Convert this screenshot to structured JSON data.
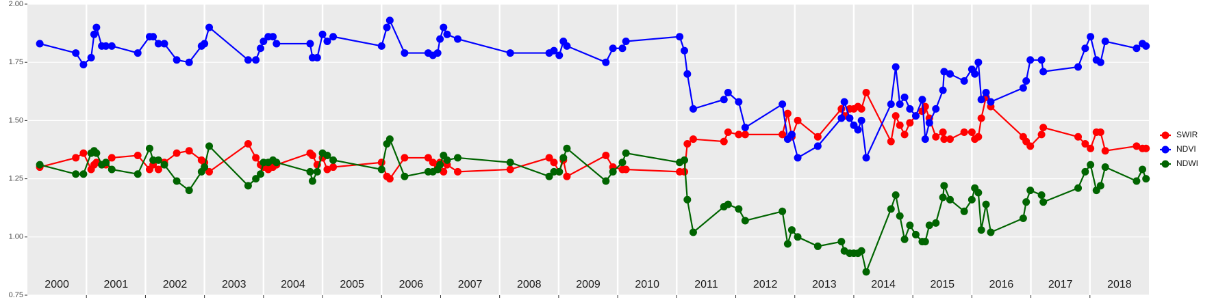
{
  "chart_data": {
    "type": "line",
    "x": [
      2000.21,
      2000.82,
      2000.95,
      2001.08,
      2001.13,
      2001.17,
      2001.26,
      2001.33,
      2001.43,
      2001.87,
      2002.07,
      2002.13,
      2002.22,
      2002.32,
      2002.53,
      2002.74,
      2002.95,
      2003.0,
      2003.08,
      2003.74,
      2003.87,
      2003.95,
      2004.0,
      2004.08,
      2004.16,
      2004.22,
      2004.79,
      2004.83,
      2004.91,
      2005.0,
      2005.08,
      2005.18,
      2006.0,
      2006.09,
      2006.14,
      2006.39,
      2006.79,
      2006.87,
      2006.95,
      2006.99,
      2007.05,
      2007.11,
      2007.29,
      2008.18,
      2008.84,
      2008.92,
      2009.01,
      2009.08,
      2009.14,
      2009.8,
      2009.92,
      2010.08,
      2010.14,
      2011.05,
      2011.13,
      2011.18,
      2011.28,
      2011.8,
      2011.87,
      2012.05,
      2012.16,
      2012.79,
      2012.88,
      2012.95,
      2013.05,
      2013.39,
      2013.79,
      2013.84,
      2013.93,
      2014.0,
      2014.07,
      2014.13,
      2014.21,
      2014.63,
      2014.71,
      2014.78,
      2014.86,
      2014.95,
      2015.05,
      2015.16,
      2015.21,
      2015.28,
      2015.39,
      2015.51,
      2015.53,
      2015.63,
      2015.87,
      2016.0,
      2016.05,
      2016.11,
      2016.16,
      2016.24,
      2016.32,
      2016.87,
      2016.92,
      2016.99,
      2017.18,
      2017.21,
      2017.8,
      2017.92,
      2018.01,
      2018.11,
      2018.18,
      2018.26,
      2018.79,
      2018.89,
      2018.95
    ],
    "series": [
      {
        "name": "SWIR",
        "color": "#ff0000",
        "values": [
          1.3,
          1.34,
          1.36,
          1.29,
          1.31,
          1.32,
          1.31,
          1.31,
          1.34,
          1.35,
          1.29,
          1.31,
          1.29,
          1.32,
          1.36,
          1.37,
          1.33,
          1.32,
          1.28,
          1.4,
          1.34,
          1.31,
          1.3,
          1.29,
          1.3,
          1.31,
          1.36,
          1.35,
          1.31,
          1.34,
          1.29,
          1.3,
          1.32,
          1.26,
          1.25,
          1.34,
          1.34,
          1.32,
          1.3,
          1.32,
          1.28,
          1.31,
          1.28,
          1.29,
          1.34,
          1.32,
          1.28,
          1.33,
          1.26,
          1.35,
          1.3,
          1.29,
          1.29,
          1.28,
          1.28,
          1.4,
          1.42,
          1.41,
          1.45,
          1.44,
          1.44,
          1.44,
          1.53,
          1.43,
          1.5,
          1.43,
          1.55,
          1.52,
          1.55,
          1.55,
          1.56,
          1.55,
          1.62,
          1.41,
          1.52,
          1.48,
          1.44,
          1.49,
          1.52,
          1.54,
          1.56,
          1.51,
          1.43,
          1.45,
          1.42,
          1.42,
          1.45,
          1.45,
          1.42,
          1.43,
          1.51,
          1.6,
          1.56,
          1.43,
          1.41,
          1.39,
          1.44,
          1.47,
          1.43,
          1.4,
          1.38,
          1.45,
          1.45,
          1.37,
          1.39,
          1.38,
          1.38
        ]
      },
      {
        "name": "NDVI",
        "color": "#0000ff",
        "values": [
          1.83,
          1.79,
          1.74,
          1.77,
          1.87,
          1.9,
          1.82,
          1.82,
          1.82,
          1.79,
          1.86,
          1.86,
          1.83,
          1.83,
          1.76,
          1.75,
          1.82,
          1.83,
          1.9,
          1.76,
          1.76,
          1.81,
          1.84,
          1.86,
          1.86,
          1.83,
          1.83,
          1.77,
          1.77,
          1.87,
          1.84,
          1.86,
          1.82,
          1.9,
          1.93,
          1.79,
          1.79,
          1.78,
          1.79,
          1.85,
          1.9,
          1.87,
          1.85,
          1.79,
          1.79,
          1.8,
          1.78,
          1.84,
          1.82,
          1.75,
          1.81,
          1.81,
          1.84,
          1.86,
          1.8,
          1.7,
          1.55,
          1.59,
          1.62,
          1.58,
          1.47,
          1.57,
          1.42,
          1.44,
          1.34,
          1.39,
          1.51,
          1.58,
          1.51,
          1.48,
          1.46,
          1.5,
          1.34,
          1.57,
          1.73,
          1.57,
          1.6,
          1.55,
          1.52,
          1.59,
          1.42,
          1.49,
          1.55,
          1.63,
          1.71,
          1.7,
          1.67,
          1.72,
          1.7,
          1.75,
          1.59,
          1.62,
          1.58,
          1.64,
          1.67,
          1.76,
          1.76,
          1.71,
          1.73,
          1.81,
          1.86,
          1.76,
          1.75,
          1.84,
          1.81,
          1.83,
          1.82
        ]
      },
      {
        "name": "NDWI",
        "color": "#006400",
        "values": [
          1.31,
          1.27,
          1.27,
          1.36,
          1.37,
          1.36,
          1.31,
          1.32,
          1.29,
          1.27,
          1.38,
          1.33,
          1.33,
          1.31,
          1.24,
          1.2,
          1.28,
          1.3,
          1.39,
          1.22,
          1.25,
          1.27,
          1.32,
          1.32,
          1.33,
          1.32,
          1.28,
          1.24,
          1.28,
          1.36,
          1.35,
          1.33,
          1.29,
          1.4,
          1.42,
          1.26,
          1.28,
          1.28,
          1.29,
          1.31,
          1.35,
          1.33,
          1.34,
          1.32,
          1.26,
          1.28,
          1.28,
          1.34,
          1.38,
          1.24,
          1.28,
          1.32,
          1.36,
          1.32,
          1.33,
          1.16,
          1.02,
          1.13,
          1.14,
          1.12,
          1.07,
          1.11,
          0.97,
          1.03,
          1.0,
          0.96,
          0.98,
          0.94,
          0.93,
          0.93,
          0.93,
          0.94,
          0.85,
          1.12,
          1.18,
          1.09,
          0.99,
          1.05,
          1.01,
          0.98,
          0.98,
          1.05,
          1.06,
          1.17,
          1.22,
          1.16,
          1.11,
          1.16,
          1.21,
          1.19,
          1.03,
          1.14,
          1.02,
          1.08,
          1.15,
          1.2,
          1.18,
          1.15,
          1.21,
          1.28,
          1.31,
          1.2,
          1.22,
          1.3,
          1.24,
          1.29,
          1.25
        ]
      }
    ],
    "xlim": [
      2000,
      2019
    ],
    "xticks": [
      2001,
      2002,
      2003,
      2004,
      2005,
      2006,
      2007,
      2008,
      2009,
      2010,
      2011,
      2012,
      2013,
      2014,
      2015,
      2016,
      2017,
      2018
    ],
    "year_labels": [
      {
        "x": 2000.5,
        "label": "2000"
      },
      {
        "x": 2001.5,
        "label": "2001"
      },
      {
        "x": 2002.5,
        "label": "2002"
      },
      {
        "x": 2003.5,
        "label": "2003"
      },
      {
        "x": 2004.5,
        "label": "2004"
      },
      {
        "x": 2005.5,
        "label": "2005"
      },
      {
        "x": 2006.5,
        "label": "2006"
      },
      {
        "x": 2007.5,
        "label": "2007"
      },
      {
        "x": 2008.5,
        "label": "2008"
      },
      {
        "x": 2009.5,
        "label": "2009"
      },
      {
        "x": 2010.5,
        "label": "2010"
      },
      {
        "x": 2011.5,
        "label": "2011"
      },
      {
        "x": 2012.5,
        "label": "2012"
      },
      {
        "x": 2013.5,
        "label": "2013"
      },
      {
        "x": 2014.5,
        "label": "2014"
      },
      {
        "x": 2015.5,
        "label": "2015"
      },
      {
        "x": 2016.5,
        "label": "2016"
      },
      {
        "x": 2017.5,
        "label": "2017"
      },
      {
        "x": 2018.5,
        "label": "2018"
      }
    ],
    "ylim": [
      0.75,
      2.0
    ],
    "yticks": [
      {
        "value": 0.75,
        "label": "0.75"
      },
      {
        "value": 1.0,
        "label": "1.00"
      },
      {
        "value": 1.25,
        "label": "1.25"
      },
      {
        "value": 1.5,
        "label": "1.50"
      },
      {
        "value": 1.75,
        "label": "1.75"
      },
      {
        "value": 2.0,
        "label": "2.00"
      }
    ],
    "grid": true,
    "legend": "right"
  }
}
